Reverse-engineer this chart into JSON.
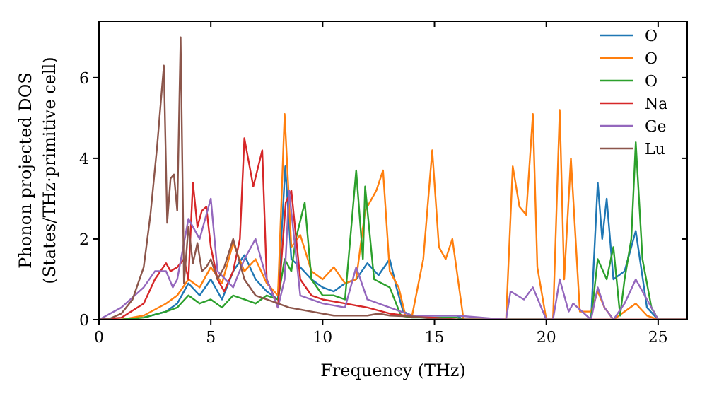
{
  "chart_data": {
    "type": "line",
    "xlabel": "Frequency (THz)",
    "ylabel": "Phonon projected DOS\n(States/THz·primitive cell)",
    "xlim": [
      0,
      26.3
    ],
    "ylim": [
      0,
      7.4
    ],
    "xticks": [
      0,
      5,
      10,
      15,
      20,
      25
    ],
    "yticks": [
      0,
      2,
      4,
      6
    ],
    "grid": false,
    "legend": "top right",
    "line_style": "solid",
    "series": [
      {
        "name": "O",
        "color": "#1f77b4",
        "x": [
          2,
          3,
          3.5,
          4,
          4.5,
          5,
          5.5,
          6,
          6.5,
          7,
          7.5,
          8,
          8.33,
          8.6,
          9,
          9.5,
          10,
          10.5,
          11,
          11.5,
          12,
          12.5,
          13,
          13.3,
          13.6,
          14,
          15,
          16,
          16.3,
          22,
          22.3,
          22.5,
          22.7,
          23,
          23.5,
          24,
          24.5,
          25,
          26.3
        ],
        "values": [
          0.05,
          0.2,
          0.4,
          0.9,
          0.6,
          1.0,
          0.5,
          1.2,
          1.6,
          1.0,
          0.7,
          0.5,
          3.8,
          1.5,
          1.3,
          1.0,
          0.8,
          0.7,
          0.9,
          1.0,
          1.4,
          1.1,
          1.5,
          0.8,
          0.2,
          0.1,
          0.1,
          0.1,
          0,
          0,
          3.4,
          2.0,
          3.0,
          1.0,
          1.2,
          2.2,
          0.3,
          0,
          0
        ]
      },
      {
        "name": "O",
        "color": "#ff7f0e",
        "x": [
          0,
          1,
          2,
          3,
          3.5,
          4,
          4.5,
          5,
          5.5,
          6,
          6.5,
          7,
          7.5,
          8,
          8.3,
          8.6,
          9,
          9.5,
          10,
          10.5,
          11,
          11.5,
          11.9,
          12.2,
          12.4,
          12.7,
          13,
          13.4,
          13.7,
          14,
          14.5,
          14.9,
          15.2,
          15.5,
          15.8,
          16.3,
          18.2,
          18.5,
          18.8,
          19.1,
          19.4,
          19.6,
          20,
          20.3,
          20.6,
          20.8,
          21.1,
          21.5,
          22,
          22.3,
          22.6,
          23,
          24,
          24.5,
          25,
          26.3
        ],
        "values": [
          0,
          0,
          0.1,
          0.4,
          0.6,
          1.0,
          0.8,
          1.3,
          0.9,
          1.9,
          1.2,
          1.5,
          0.9,
          0.6,
          5.1,
          1.8,
          2.1,
          1.2,
          1.0,
          1.3,
          0.9,
          1.0,
          2.7,
          3.0,
          3.2,
          3.7,
          1.2,
          0.8,
          0.1,
          0.1,
          1.5,
          4.2,
          1.8,
          1.5,
          2.0,
          0,
          0,
          3.8,
          2.8,
          2.6,
          5.1,
          1.3,
          0,
          0,
          5.2,
          1.0,
          4.0,
          0.2,
          0.2,
          0.7,
          0.3,
          0,
          0.4,
          0.1,
          0,
          0
        ]
      },
      {
        "name": "O",
        "color": "#2ca02c",
        "x": [
          0,
          1,
          2,
          3,
          3.5,
          4,
          4.5,
          5,
          5.5,
          6,
          6.5,
          7,
          7.5,
          8,
          8.3,
          8.6,
          8.8,
          9.2,
          9.5,
          10,
          10.5,
          11,
          11.5,
          11.8,
          11.9,
          12.3,
          13,
          13.5,
          14,
          16,
          16.3,
          22,
          22.3,
          22.7,
          23,
          23.3,
          23.5,
          23.8,
          24,
          24.3,
          24.7,
          25,
          26.3
        ],
        "values": [
          0,
          0,
          0.05,
          0.2,
          0.3,
          0.6,
          0.4,
          0.5,
          0.3,
          0.6,
          0.5,
          0.4,
          0.6,
          0.5,
          1.5,
          1.2,
          2.0,
          2.9,
          1.0,
          0.6,
          0.6,
          0.5,
          3.7,
          1.5,
          3.3,
          1.0,
          0.8,
          0.1,
          0.05,
          0.05,
          0,
          0,
          1.5,
          1.0,
          1.8,
          0.1,
          1.0,
          2.0,
          4.4,
          1.5,
          0.3,
          0,
          0
        ]
      },
      {
        "name": "Na",
        "color": "#d62728",
        "x": [
          0,
          1,
          2,
          2.5,
          3,
          3.2,
          3.5,
          3.8,
          4.0,
          4.2,
          4.4,
          4.6,
          4.8,
          5.0,
          5.3,
          5.6,
          6.0,
          6.3,
          6.5,
          6.9,
          7.3,
          7.5,
          7.8,
          8.0,
          8.35,
          8.6,
          9.0,
          9.5,
          10,
          11,
          12,
          13,
          14,
          15,
          16,
          26.3
        ],
        "values": [
          0,
          0.05,
          0.4,
          1.0,
          1.4,
          1.2,
          1.3,
          1.5,
          1.0,
          3.4,
          2.3,
          2.7,
          2.8,
          1.8,
          1.0,
          0.7,
          1.2,
          2.0,
          4.5,
          3.3,
          4.2,
          1.0,
          0.6,
          0.3,
          2.9,
          3.2,
          1.0,
          0.6,
          0.5,
          0.4,
          0.3,
          0.15,
          0.08,
          0.05,
          0,
          0
        ]
      },
      {
        "name": "Ge",
        "color": "#9467bd",
        "x": [
          0,
          1,
          2,
          2.5,
          3,
          3.3,
          3.5,
          4,
          4.5,
          5,
          5.3,
          6,
          6.5,
          7,
          7.5,
          8,
          8.3,
          8.5,
          9,
          10,
          11,
          11.5,
          12,
          13,
          14,
          16,
          18.2,
          18.4,
          19,
          19.4,
          20,
          20.3,
          20.6,
          21,
          21.2,
          22,
          22.3,
          22.6,
          23,
          23.5,
          24,
          24.5,
          25,
          26.3
        ],
        "values": [
          0,
          0.3,
          0.8,
          1.2,
          1.2,
          0.8,
          1.0,
          2.5,
          2.0,
          3.0,
          1.2,
          0.8,
          1.5,
          2.0,
          1.0,
          0.3,
          1.0,
          3.2,
          0.6,
          0.4,
          0.3,
          1.3,
          0.5,
          0.3,
          0.1,
          0.1,
          0,
          0.7,
          0.5,
          0.8,
          0,
          0,
          1.0,
          0.2,
          0.4,
          0,
          0.8,
          0.3,
          0,
          0.4,
          1.0,
          0.5,
          0,
          0
        ]
      },
      {
        "name": "Lu",
        "color": "#8c564b",
        "x": [
          0,
          0.5,
          1,
          1.5,
          2,
          2.3,
          2.6,
          2.9,
          3.05,
          3.2,
          3.35,
          3.5,
          3.65,
          3.8,
          4.0,
          4.2,
          4.4,
          4.6,
          4.8,
          5.0,
          5.3,
          5.6,
          6.0,
          6.5,
          7.0,
          7.5,
          8.0,
          8.5,
          9.0,
          9.5,
          10,
          10.5,
          11,
          12,
          12.5,
          13,
          14,
          15,
          16,
          26.3
        ],
        "values": [
          0,
          0.03,
          0.15,
          0.5,
          1.3,
          2.6,
          4.3,
          6.3,
          2.4,
          3.5,
          3.6,
          2.7,
          7.0,
          0.9,
          2.3,
          1.4,
          1.9,
          1.2,
          1.3,
          1.5,
          1.0,
          1.3,
          2.0,
          1.0,
          0.6,
          0.5,
          0.4,
          0.3,
          0.25,
          0.2,
          0.15,
          0.1,
          0.1,
          0.1,
          0.15,
          0.1,
          0.08,
          0.02,
          0,
          0
        ]
      }
    ]
  }
}
